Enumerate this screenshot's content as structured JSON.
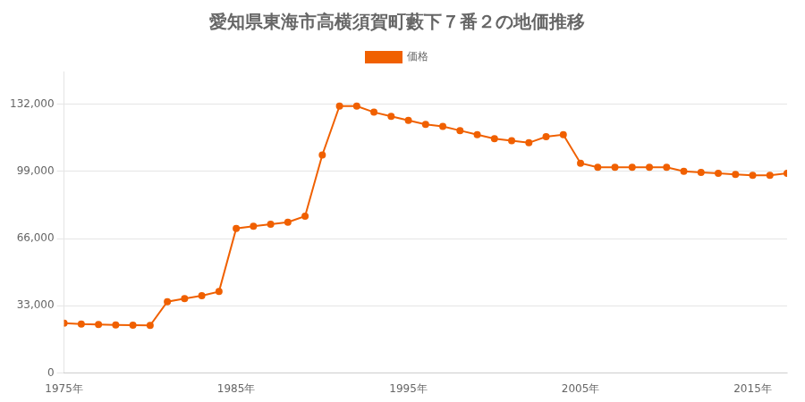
{
  "chart_data": {
    "type": "line",
    "title": "愛知県東海市高横須賀町藪下７番２の地価推移",
    "x": [
      1975,
      1976,
      1977,
      1978,
      1979,
      1980,
      1981,
      1982,
      1983,
      1984,
      1985,
      1986,
      1987,
      1988,
      1989,
      1990,
      1991,
      1992,
      1993,
      1994,
      1995,
      1996,
      1997,
      1998,
      1999,
      2000,
      2001,
      2002,
      2003,
      2004,
      2005,
      2006,
      2007,
      2008,
      2009,
      2010,
      2011,
      2012,
      2013,
      2014,
      2015,
      2016,
      2017
    ],
    "series": [
      {
        "name": "価格",
        "color": "#f06000",
        "marker": "circle",
        "line_style": "solid",
        "values": [
          24500,
          24000,
          23800,
          23600,
          23500,
          23400,
          35000,
          36500,
          38000,
          40000,
          71000,
          72000,
          73000,
          74000,
          77000,
          107000,
          131000,
          131000,
          128000,
          126000,
          124000,
          122000,
          121000,
          119000,
          117000,
          115000,
          114000,
          113000,
          116000,
          117000,
          103000,
          101000,
          101000,
          101000,
          101000,
          101000,
          99000,
          98500,
          98000,
          97500,
          97000,
          97000,
          98000
        ]
      }
    ],
    "xlim": [
      1975,
      2017
    ],
    "xticks": [
      {
        "value": 1975,
        "label": "1975年"
      },
      {
        "value": 1985,
        "label": "1985年"
      },
      {
        "value": 1995,
        "label": "1995年"
      },
      {
        "value": 2005,
        "label": "2005年"
      },
      {
        "value": 2015,
        "label": "2015年"
      }
    ],
    "ylim": [
      0,
      148000
    ],
    "yticks": [
      0,
      {
        "value": 33000,
        "label": "33,000"
      },
      {
        "value": 66000,
        "label": "66,000"
      },
      {
        "value": 99000,
        "label": "99,000"
      },
      {
        "value": 132000,
        "label": "132,000"
      }
    ],
    "grid": "y",
    "legend": "top"
  }
}
